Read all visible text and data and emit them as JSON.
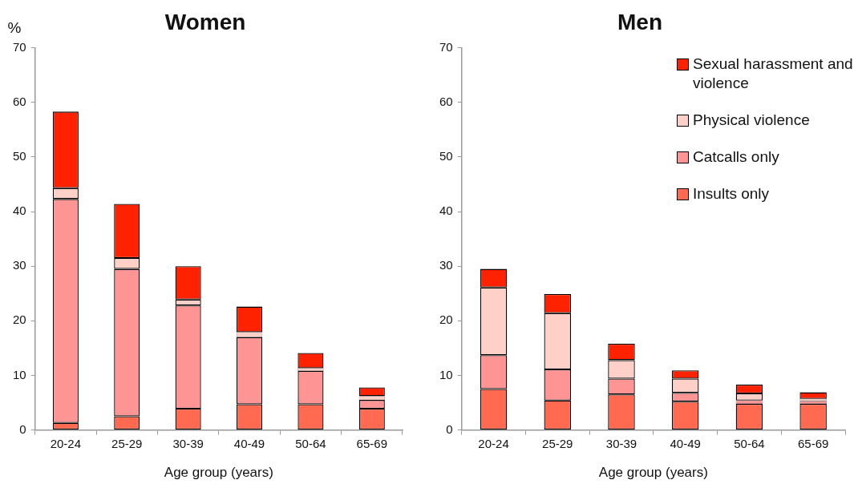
{
  "chart_data": [
    {
      "type": "bar",
      "title": "Women",
      "ylabel": "%",
      "xlabel": "Age group (years)",
      "categories": [
        "20-24",
        "25-29",
        "30-39",
        "40-49",
        "50-64",
        "65-69"
      ],
      "stacked": true,
      "ylim": [
        0,
        70
      ],
      "yticks": [
        0,
        10,
        20,
        30,
        40,
        50,
        60,
        70
      ],
      "grid": false,
      "legend": false,
      "series": [
        {
          "color": "#ff6a50",
          "values": [
            1.3,
            2.5,
            3.9,
            4.7,
            4.7,
            3.9
          ]
        },
        {
          "color": "#ff9494",
          "values": [
            41.0,
            27.0,
            18.9,
            12.3,
            6.1,
            1.6
          ]
        },
        {
          "color": "#ffd0c8",
          "values": [
            2.0,
            2.0,
            1.1,
            0.9,
            0.5,
            0.7
          ]
        },
        {
          "color": "#ff2200",
          "values": [
            14.0,
            9.9,
            6.1,
            4.7,
            2.8,
            1.6
          ]
        }
      ]
    },
    {
      "type": "bar",
      "title": "Men",
      "xlabel": "Age group (years)",
      "categories": [
        "20-24",
        "25-29",
        "30-39",
        "40-49",
        "50-64",
        "65-69"
      ],
      "stacked": true,
      "ylim": [
        0,
        70
      ],
      "yticks": [
        0,
        10,
        20,
        30,
        40,
        50,
        60,
        70
      ],
      "grid": false,
      "legend": "top right",
      "series": [
        {
          "name": "Insults only",
          "color": "#ff6a50",
          "values": [
            7.5,
            5.4,
            6.5,
            5.2,
            4.8,
            4.8
          ]
        },
        {
          "name": "Catcalls only",
          "color": "#ff9494",
          "values": [
            6.2,
            5.7,
            2.9,
            1.6,
            0.6,
            0.5
          ]
        },
        {
          "name": "Physical violence",
          "color": "#ffd0c8",
          "values": [
            12.4,
            10.3,
            3.4,
            2.6,
            1.3,
            0.4
          ]
        },
        {
          "name": "Sexual harassment and violence",
          "color": "#ff2200",
          "values": [
            3.4,
            3.5,
            3.0,
            1.5,
            1.6,
            1.2
          ]
        }
      ]
    }
  ]
}
